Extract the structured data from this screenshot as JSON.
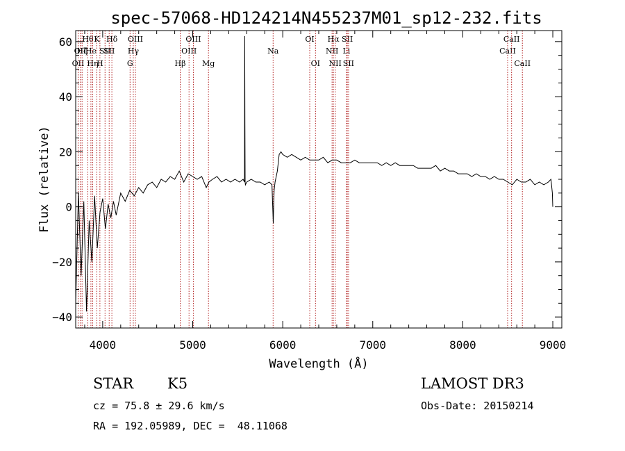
{
  "chart_data": {
    "type": "line",
    "title": "spec-57068-HD124214N455237M01_sp12-232.fits",
    "xlabel": "Wavelength (Å)",
    "ylabel": "Flux (relative)",
    "xlim": [
      3700,
      9100
    ],
    "ylim": [
      -44,
      64
    ],
    "xticks": [
      4000,
      5000,
      6000,
      7000,
      8000,
      9000
    ],
    "yticks": [
      -40,
      -20,
      0,
      20,
      40,
      60
    ],
    "line_color": "#000000",
    "marker_color": "#b22222",
    "series": [
      {
        "name": "spectrum",
        "x": [
          3700,
          3730,
          3760,
          3790,
          3820,
          3850,
          3880,
          3910,
          3940,
          3970,
          4000,
          4030,
          4060,
          4090,
          4120,
          4150,
          4200,
          4250,
          4300,
          4350,
          4400,
          4450,
          4500,
          4550,
          4600,
          4650,
          4700,
          4750,
          4800,
          4850,
          4900,
          4950,
          5000,
          5050,
          5100,
          5150,
          5180,
          5220,
          5270,
          5320,
          5370,
          5420,
          5470,
          5520,
          5560,
          5575,
          5578,
          5580,
          5582,
          5585,
          5600,
          5650,
          5700,
          5750,
          5800,
          5850,
          5880,
          5895,
          5900,
          5905,
          5915,
          5940,
          5960,
          5980,
          6000,
          6050,
          6100,
          6150,
          6200,
          6250,
          6300,
          6350,
          6400,
          6450,
          6500,
          6550,
          6600,
          6650,
          6700,
          6750,
          6800,
          6850,
          6900,
          6950,
          7000,
          7050,
          7100,
          7150,
          7200,
          7250,
          7300,
          7350,
          7400,
          7450,
          7500,
          7550,
          7600,
          7650,
          7700,
          7750,
          7800,
          7850,
          7900,
          7950,
          8000,
          8050,
          8100,
          8150,
          8200,
          8250,
          8300,
          8350,
          8400,
          8450,
          8500,
          8550,
          8600,
          8650,
          8700,
          8750,
          8800,
          8850,
          8900,
          8950,
          8980,
          8995,
          9000
        ],
        "values": [
          -35,
          5,
          -25,
          2,
          -38,
          -5,
          -20,
          4,
          -15,
          -2,
          3,
          -8,
          1,
          -4,
          2,
          -3,
          5,
          2,
          6,
          4,
          7,
          5,
          8,
          9,
          7,
          10,
          9,
          11,
          10,
          13,
          9,
          12,
          11,
          10,
          11,
          7,
          9,
          10,
          11,
          9,
          10,
          9,
          10,
          9,
          10,
          9,
          62,
          30,
          9,
          8,
          9,
          10,
          9,
          9,
          8,
          9,
          8,
          -6,
          2,
          6,
          9,
          13,
          19,
          20,
          19,
          18,
          19,
          18,
          17,
          18,
          17,
          17,
          17,
          18,
          16,
          17,
          17,
          16,
          16,
          16,
          17,
          16,
          16,
          16,
          16,
          16,
          15,
          16,
          15,
          16,
          15,
          15,
          15,
          15,
          14,
          14,
          14,
          14,
          15,
          13,
          14,
          13,
          13,
          12,
          12,
          12,
          11,
          12,
          11,
          11,
          10,
          11,
          10,
          10,
          9,
          8,
          10,
          9,
          9,
          10,
          8,
          9,
          8,
          9,
          10,
          5,
          0
        ]
      }
    ],
    "line_markers": [
      {
        "wave": 3727,
        "label": "OII",
        "row": 2
      },
      {
        "wave": 3750,
        "label": "OII",
        "row": 1
      },
      {
        "wave": 3771,
        "label": "Hζ",
        "row": 1
      },
      {
        "wave": 3835,
        "label": "Hθ",
        "row": 0
      },
      {
        "wave": 3869,
        "label": "He",
        "row": 1
      },
      {
        "wave": 3889,
        "label": "Hη",
        "row": 2
      },
      {
        "wave": 3934,
        "label": "K",
        "row": 0
      },
      {
        "wave": 3969,
        "label": "H",
        "row": 2
      },
      {
        "wave": 4026,
        "label": "SII",
        "row": 1
      },
      {
        "wave": 4102,
        "label": "Hδ",
        "row": 0
      },
      {
        "wave": 4072,
        "label": "SII",
        "row": 1
      },
      {
        "wave": 4304,
        "label": "G",
        "row": 2
      },
      {
        "wave": 4340,
        "label": "Hγ",
        "row": 1
      },
      {
        "wave": 4363,
        "label": "OIII",
        "row": 0
      },
      {
        "wave": 4861,
        "label": "Hβ",
        "row": 2
      },
      {
        "wave": 4959,
        "label": "OIII",
        "row": 1
      },
      {
        "wave": 5007,
        "label": "OIII",
        "row": 0
      },
      {
        "wave": 5175,
        "label": "Mg",
        "row": 2
      },
      {
        "wave": 5893,
        "label": "Na",
        "row": 1
      },
      {
        "wave": 6300,
        "label": "OI",
        "row": 0
      },
      {
        "wave": 6364,
        "label": "OI",
        "row": 2
      },
      {
        "wave": 6548,
        "label": "NII",
        "row": 1
      },
      {
        "wave": 6563,
        "label": "Hα",
        "row": 0
      },
      {
        "wave": 6583,
        "label": "NII",
        "row": 2
      },
      {
        "wave": 6708,
        "label": "Li",
        "row": 1
      },
      {
        "wave": 6717,
        "label": "SII",
        "row": 0
      },
      {
        "wave": 6731,
        "label": "SII",
        "row": 2
      },
      {
        "wave": 8498,
        "label": "CaII",
        "row": 1
      },
      {
        "wave": 8542,
        "label": "CaII",
        "row": 0
      },
      {
        "wave": 8662,
        "label": "CaII",
        "row": 2
      }
    ]
  },
  "info": {
    "object_class": "STAR",
    "subclass": "K5",
    "redshift": "cz = 75.8 ± 29.6 km/s",
    "coords": "RA = 192.05989, DEC =  48.11068",
    "survey": "LAMOST DR3",
    "obs_date": "Obs-Date: 20150214"
  }
}
